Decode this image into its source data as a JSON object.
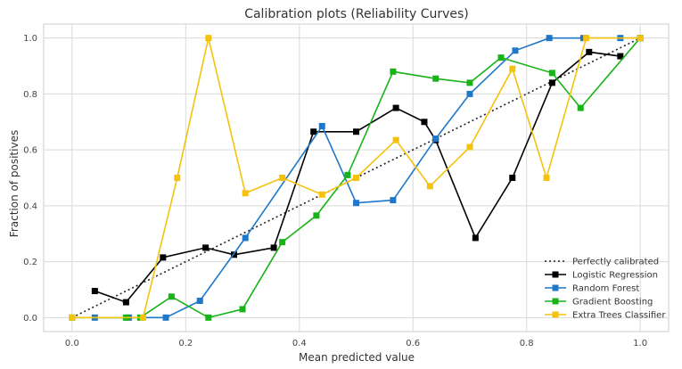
{
  "chart_data": {
    "type": "line",
    "title": "Calibration plots (Reliability Curves)",
    "xlabel": "Mean predicted value",
    "ylabel": "Fraction of positives",
    "xlim": [
      -0.05,
      1.05
    ],
    "ylim": [
      -0.05,
      1.05
    ],
    "xticks": [
      0.0,
      0.2,
      0.4,
      0.6,
      0.8,
      1.0
    ],
    "yticks": [
      0.0,
      0.2,
      0.4,
      0.6,
      0.8,
      1.0
    ],
    "xtick_labels": [
      "0.0",
      "0.2",
      "0.4",
      "0.6",
      "0.8",
      "1.0"
    ],
    "ytick_labels": [
      "0.0",
      "0.2",
      "0.4",
      "0.6",
      "0.8",
      "1.0"
    ],
    "grid": true,
    "legend_position": "bottom-right",
    "reference": {
      "name": "Perfectly calibrated",
      "color": "#222222",
      "style": "dotted",
      "x": [
        0,
        1
      ],
      "y": [
        0,
        1
      ]
    },
    "series": [
      {
        "name": "Logistic Regression",
        "color": "#000000",
        "x": [
          0.04,
          0.095,
          0.16,
          0.235,
          0.285,
          0.355,
          0.425,
          0.5,
          0.57,
          0.62,
          0.64,
          0.71,
          0.775,
          0.845,
          0.91,
          0.965
        ],
        "y": [
          0.095,
          0.055,
          0.215,
          0.25,
          0.225,
          0.25,
          0.665,
          0.665,
          0.75,
          0.7,
          0.635,
          0.285,
          0.5,
          0.84,
          0.95,
          0.935
        ]
      },
      {
        "name": "Random Forest",
        "color": "#1f77c9",
        "x": [
          0.04,
          0.1,
          0.165,
          0.225,
          0.305,
          0.44,
          0.5,
          0.565,
          0.64,
          0.7,
          0.78,
          0.84,
          0.9,
          0.965,
          1.0
        ],
        "y": [
          0.0,
          0.0,
          0.0,
          0.06,
          0.285,
          0.685,
          0.41,
          0.42,
          0.64,
          0.8,
          0.955,
          1.0,
          1.0,
          1.0,
          1.0
        ]
      },
      {
        "name": "Gradient Boosting",
        "color": "#17b317",
        "x": [
          0.0,
          0.095,
          0.12,
          0.175,
          0.24,
          0.3,
          0.37,
          0.43,
          0.485,
          0.565,
          0.64,
          0.7,
          0.755,
          0.845,
          0.895,
          1.0
        ],
        "y": [
          0.0,
          0.0,
          0.0,
          0.075,
          0.0,
          0.03,
          0.27,
          0.365,
          0.51,
          0.88,
          0.855,
          0.84,
          0.93,
          0.875,
          0.75,
          1.0
        ]
      },
      {
        "name": "Extra Trees Classifier",
        "color": "#f4c20d",
        "x": [
          0.0,
          0.125,
          0.185,
          0.24,
          0.305,
          0.37,
          0.44,
          0.5,
          0.57,
          0.63,
          0.7,
          0.775,
          0.835,
          0.905,
          1.0
        ],
        "y": [
          0.0,
          0.0,
          0.5,
          1.0,
          0.445,
          0.5,
          0.44,
          0.5,
          0.635,
          0.47,
          0.61,
          0.89,
          0.5,
          1.0,
          1.0
        ]
      }
    ]
  }
}
